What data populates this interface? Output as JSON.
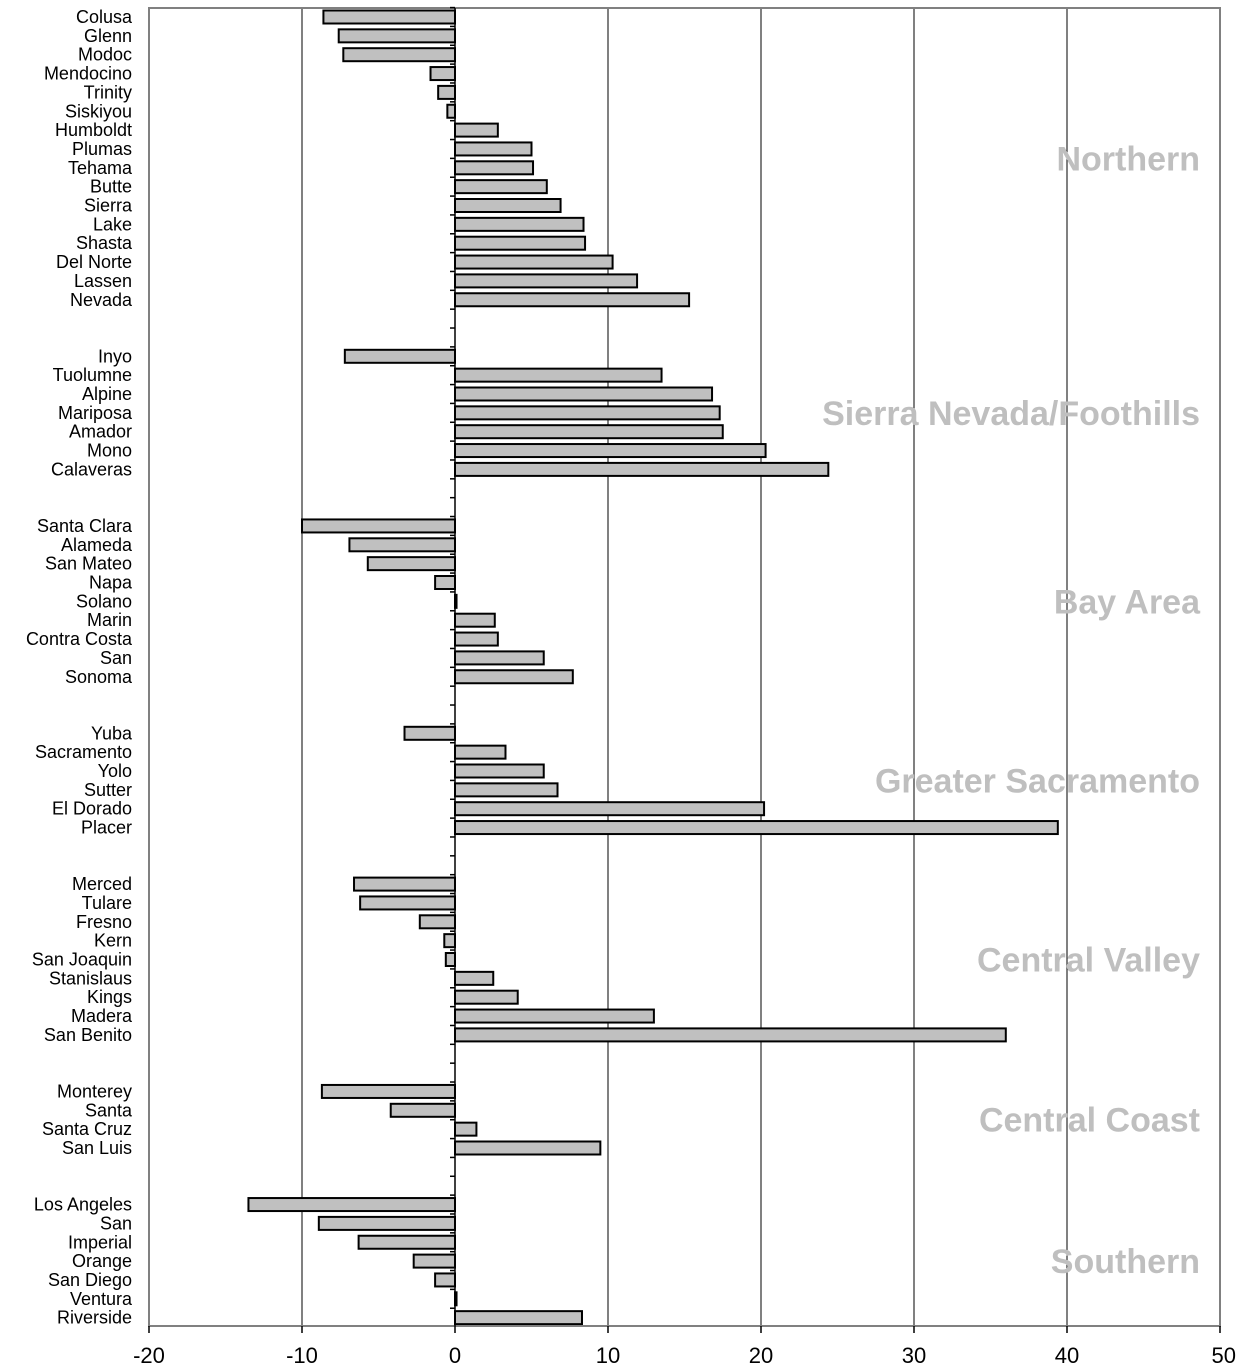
{
  "chart_data": {
    "type": "bar",
    "orientation": "horizontal",
    "xlim": [
      -20,
      50
    ],
    "xticks": [
      -20,
      -10,
      0,
      10,
      20,
      30,
      40,
      50
    ],
    "tick_labels": [
      "-20",
      "-10",
      "0",
      "10",
      "20",
      "30",
      "40",
      "50"
    ],
    "grid": "vertical",
    "bar_color": "#c0c0c0",
    "region_label_color": "#bfbfbf",
    "groups": [
      {
        "region": "Northern",
        "categories": [
          "Colusa",
          "Glenn",
          "Modoc",
          "Mendocino",
          "Trinity",
          "Siskiyou",
          "Humboldt",
          "Plumas",
          "Tehama",
          "Butte",
          "Sierra",
          "Lake",
          "Shasta",
          "Del Norte",
          "Lassen",
          "Nevada"
        ],
        "values": [
          -8.6,
          -7.6,
          -7.3,
          -1.6,
          -1.1,
          -0.5,
          2.8,
          5.0,
          5.1,
          6.0,
          6.9,
          8.4,
          8.5,
          10.3,
          11.9,
          15.3
        ]
      },
      {
        "region": "Sierra Nevada/Foothills",
        "categories": [
          "Inyo",
          "Tuolumne",
          "Alpine",
          "Mariposa",
          "Amador",
          "Mono",
          "Calaveras"
        ],
        "values": [
          -7.2,
          13.5,
          16.8,
          17.3,
          17.5,
          20.3,
          24.4
        ]
      },
      {
        "region": "Bay Area",
        "categories": [
          "Santa Clara",
          "Alameda",
          "San Mateo",
          "Napa",
          "Solano",
          "Marin",
          "Contra Costa",
          "San",
          "Sonoma"
        ],
        "values": [
          -10.0,
          -6.9,
          -5.7,
          -1.3,
          0.1,
          2.6,
          2.8,
          5.8,
          7.7
        ]
      },
      {
        "region": "Greater Sacramento",
        "categories": [
          "Yuba",
          "Sacramento",
          "Yolo",
          "Sutter",
          "El Dorado",
          "Placer"
        ],
        "values": [
          -3.3,
          3.3,
          5.8,
          6.7,
          20.2,
          39.4
        ]
      },
      {
        "region": "Central Valley",
        "categories": [
          "Merced",
          "Tulare",
          "Fresno",
          "Kern",
          "San Joaquin",
          "Stanislaus",
          "Kings",
          "Madera",
          "San Benito"
        ],
        "values": [
          -6.6,
          -6.2,
          -2.3,
          -0.7,
          -0.6,
          2.5,
          4.1,
          13.0,
          36.0
        ]
      },
      {
        "region": "Central Coast",
        "categories": [
          "Monterey",
          "Santa",
          "Santa Cruz",
          "San Luis"
        ],
        "values": [
          -8.7,
          -4.2,
          1.4,
          9.5
        ]
      },
      {
        "region": "Southern",
        "categories": [
          "Los Angeles",
          "San",
          "Imperial",
          "Orange",
          "San Diego",
          "Ventura",
          "Riverside"
        ],
        "values": [
          -13.5,
          -8.9,
          -6.3,
          -2.7,
          -1.3,
          0.1,
          8.3
        ]
      }
    ]
  }
}
